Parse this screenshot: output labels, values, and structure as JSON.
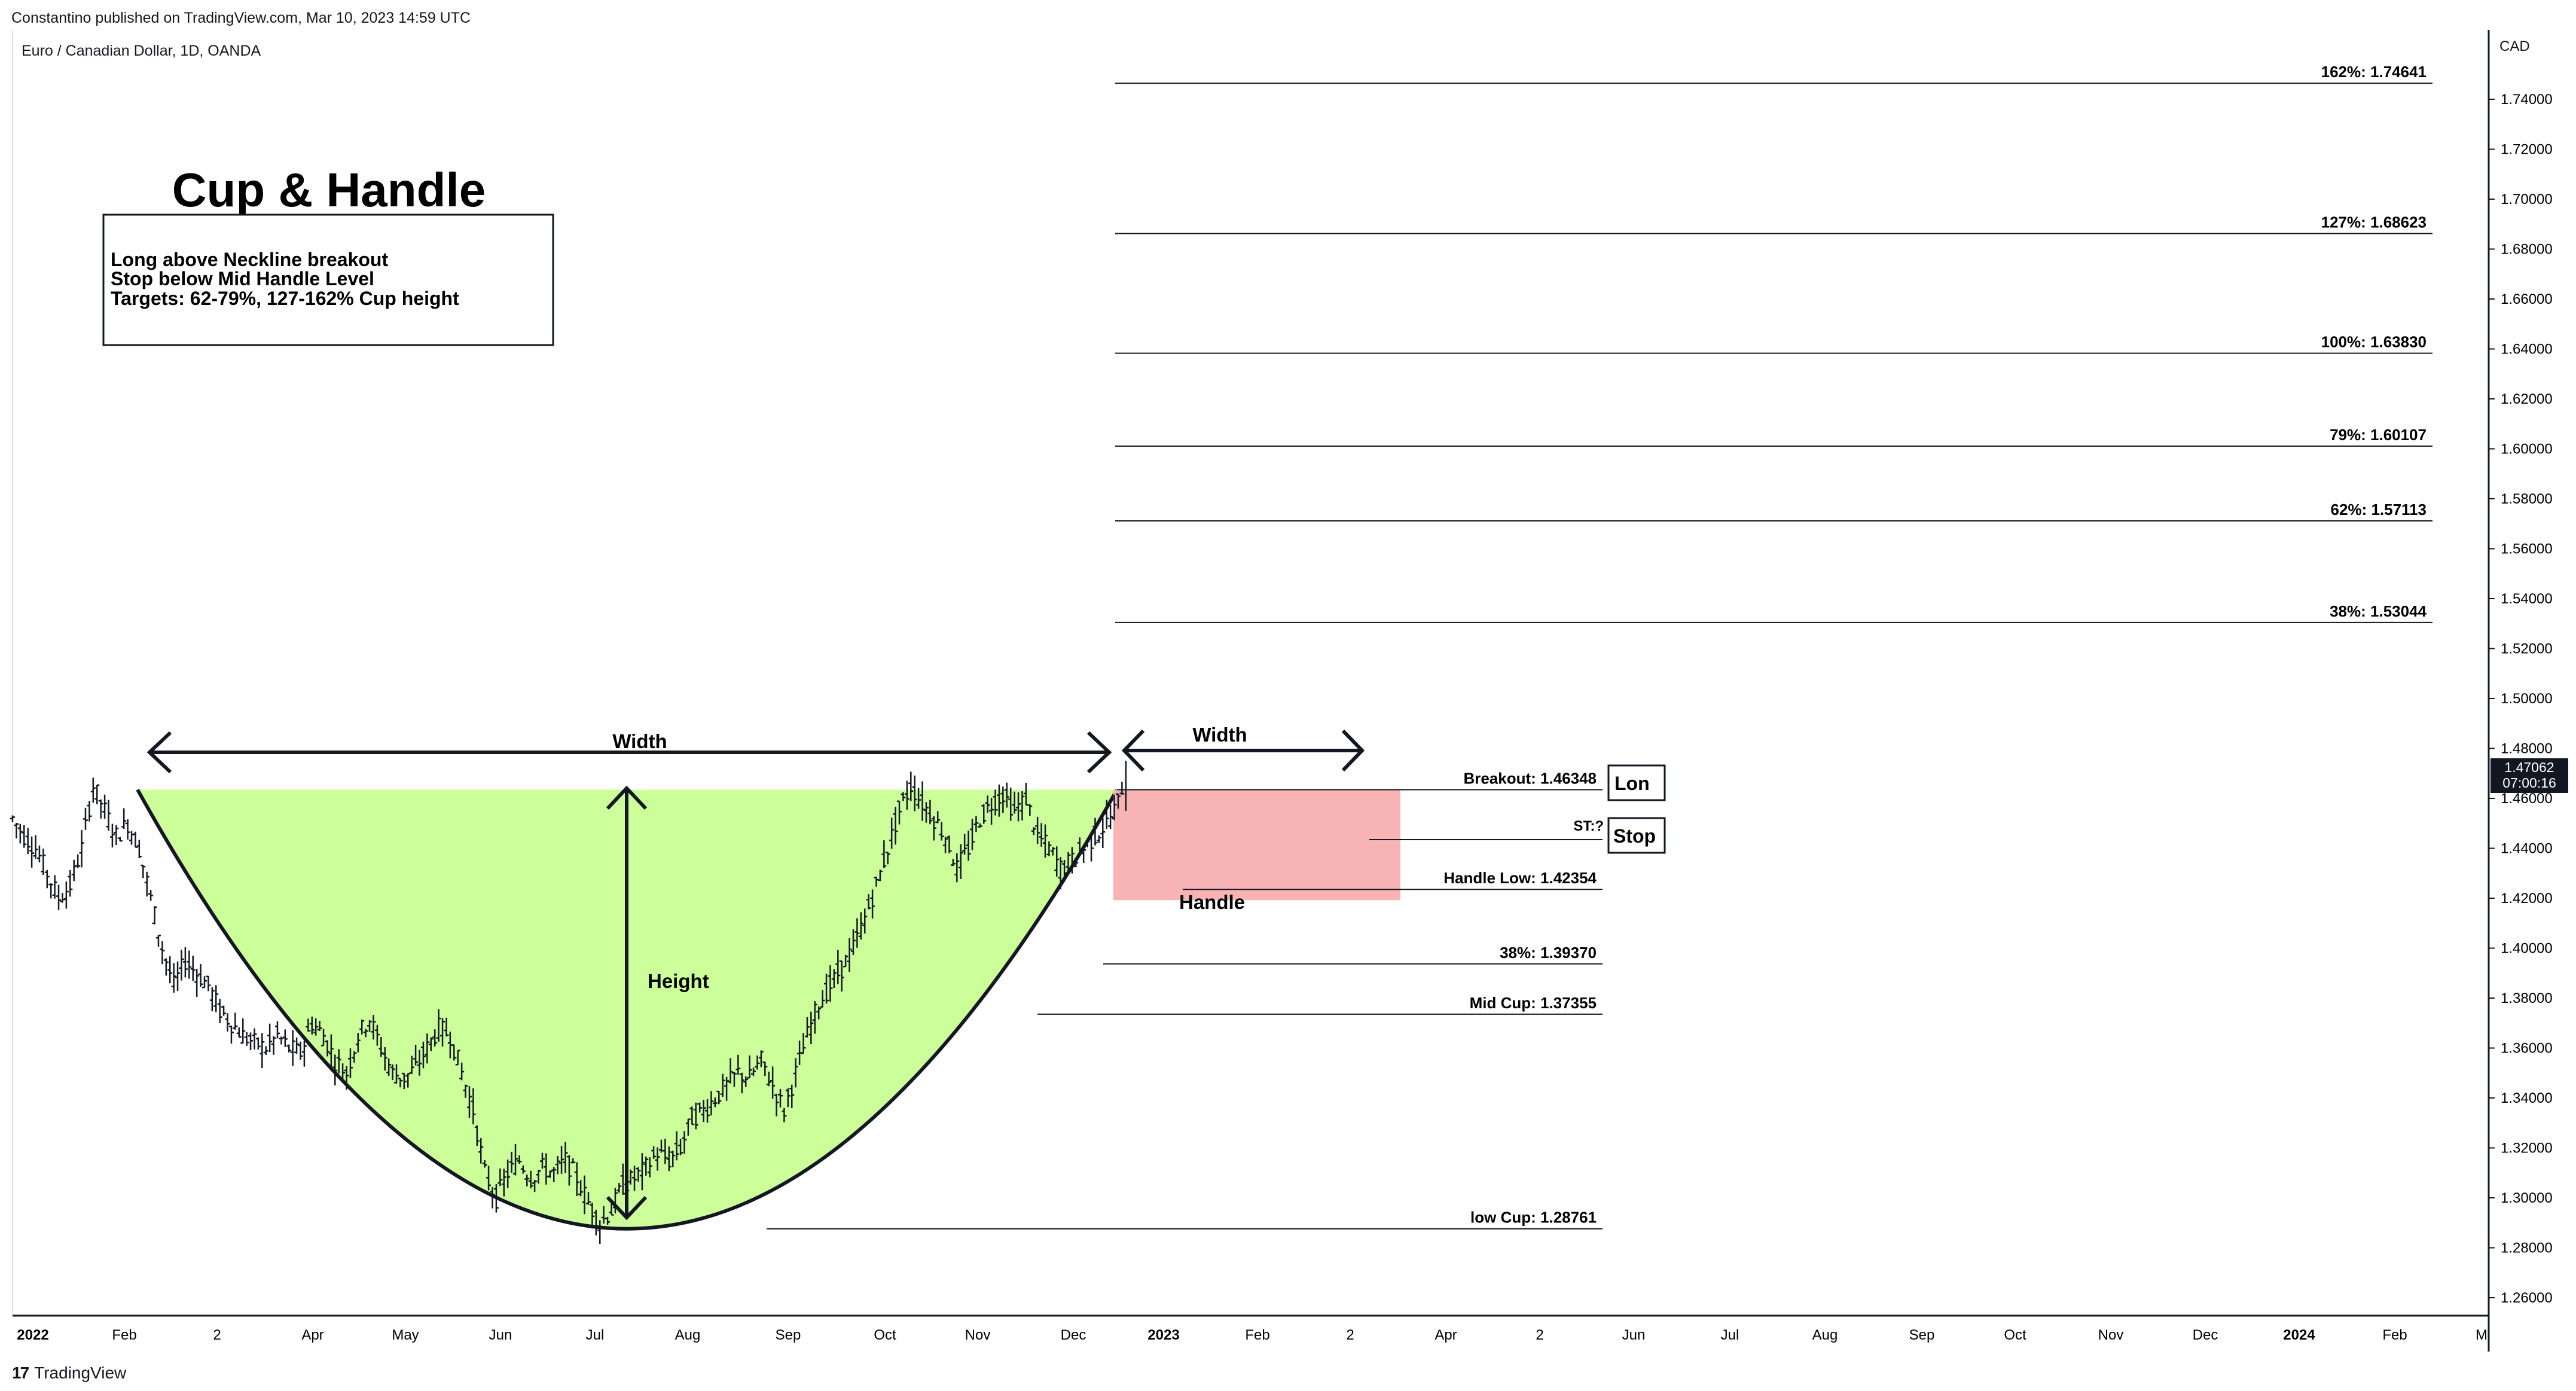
{
  "header": {
    "publisher": "Constantino published on TradingView.com, Mar 10, 2023 14:59 UTC",
    "symbol": "Euro / Canadian Dollar, 1D, OANDA"
  },
  "footer": {
    "brand_mark": "17",
    "brand": "TradingView"
  },
  "price_scale": {
    "currency": "CAD",
    "current_price": "1.47062",
    "countdown": "07:00:16"
  },
  "annotations": {
    "title": "Cup & Handle",
    "box_lines": [
      "Long above Neckline breakout",
      "Stop below Mid Handle Level",
      "Targets: 62-79%, 127-162% Cup height"
    ],
    "width_label": "Width",
    "width_label_handle": "Width",
    "height_label": "Height",
    "handle_label": "Handle",
    "long_label": "Lon",
    "stop_label": "Stop",
    "stop_target_label": "ST:?"
  },
  "chart_data": {
    "type": "ohlc",
    "symbol": "EUR/CAD",
    "interval": "1D",
    "ylim": [
      1.245,
      1.775
    ],
    "y_ticks": [
      "1.74000",
      "1.72000",
      "1.70000",
      "1.68000",
      "1.66000",
      "1.64000",
      "1.62000",
      "1.60000",
      "1.58000",
      "1.56000",
      "1.54000",
      "1.52000",
      "1.50000",
      "1.48000",
      "1.46000",
      "1.44000",
      "1.42000",
      "1.40000",
      "1.38000",
      "1.36000",
      "1.34000",
      "1.32000",
      "1.30000",
      "1.28000",
      "1.26000"
    ],
    "x_ticks": [
      "2022",
      "Feb",
      "2",
      "Apr",
      "May",
      "Jun",
      "Jul",
      "Aug",
      "Sep",
      "Oct",
      "Nov",
      "Dec",
      "2023",
      "Feb",
      "2",
      "Apr",
      "2",
      "Jun",
      "Jul",
      "Aug",
      "Sep",
      "Oct",
      "Nov",
      "Dec",
      "2024",
      "Feb",
      "M"
    ],
    "bold_x_ticks": [
      "2022",
      "2023",
      "2024"
    ],
    "price_path": [
      [
        0,
        1.452
      ],
      [
        3,
        1.445
      ],
      [
        6,
        1.44
      ],
      [
        9,
        1.43
      ],
      [
        12,
        1.42
      ],
      [
        15,
        1.425
      ],
      [
        18,
        1.44
      ],
      [
        21,
        1.465
      ],
      [
        24,
        1.455
      ],
      [
        27,
        1.445
      ],
      [
        30,
        1.45
      ],
      [
        33,
        1.44
      ],
      [
        36,
        1.42
      ],
      [
        39,
        1.4
      ],
      [
        42,
        1.385
      ],
      [
        45,
        1.395
      ],
      [
        48,
        1.39
      ],
      [
        51,
        1.385
      ],
      [
        54,
        1.375
      ],
      [
        57,
        1.37
      ],
      [
        60,
        1.365
      ],
      [
        63,
        1.362
      ],
      [
        66,
        1.36
      ],
      [
        69,
        1.365
      ],
      [
        72,
        1.36
      ],
      [
        75,
        1.358
      ],
      [
        78,
        1.37
      ],
      [
        81,
        1.365
      ],
      [
        84,
        1.355
      ],
      [
        87,
        1.35
      ],
      [
        90,
        1.365
      ],
      [
        93,
        1.372
      ],
      [
        96,
        1.36
      ],
      [
        99,
        1.35
      ],
      [
        102,
        1.348
      ],
      [
        105,
        1.352
      ],
      [
        108,
        1.36
      ],
      [
        111,
        1.368
      ],
      [
        114,
        1.365
      ],
      [
        117,
        1.35
      ],
      [
        120,
        1.335
      ],
      [
        123,
        1.31
      ],
      [
        126,
        1.3
      ],
      [
        129,
        1.31
      ],
      [
        132,
        1.315
      ],
      [
        135,
        1.308
      ],
      [
        138,
        1.312
      ],
      [
        141,
        1.31
      ],
      [
        144,
        1.315
      ],
      [
        147,
        1.308
      ],
      [
        150,
        1.298
      ],
      [
        153,
        1.29
      ],
      [
        156,
        1.295
      ],
      [
        159,
        1.305
      ],
      [
        162,
        1.308
      ],
      [
        165,
        1.312
      ],
      [
        168,
        1.318
      ],
      [
        171,
        1.315
      ],
      [
        174,
        1.32
      ],
      [
        177,
        1.332
      ],
      [
        180,
        1.335
      ],
      [
        183,
        1.34
      ],
      [
        186,
        1.345
      ],
      [
        189,
        1.35
      ],
      [
        192,
        1.348
      ],
      [
        195,
        1.355
      ],
      [
        198,
        1.345
      ],
      [
        201,
        1.335
      ],
      [
        204,
        1.35
      ],
      [
        207,
        1.365
      ],
      [
        210,
        1.378
      ],
      [
        213,
        1.385
      ],
      [
        216,
        1.392
      ],
      [
        219,
        1.4
      ],
      [
        222,
        1.412
      ],
      [
        225,
        1.425
      ],
      [
        228,
        1.44
      ],
      [
        231,
        1.455
      ],
      [
        234,
        1.465
      ],
      [
        237,
        1.458
      ],
      [
        240,
        1.452
      ],
      [
        243,
        1.445
      ],
      [
        246,
        1.432
      ],
      [
        249,
        1.44
      ],
      [
        252,
        1.452
      ],
      [
        255,
        1.458
      ],
      [
        258,
        1.462
      ],
      [
        261,
        1.455
      ],
      [
        264,
        1.46
      ],
      [
        267,
        1.445
      ],
      [
        270,
        1.44
      ],
      [
        273,
        1.432
      ],
      [
        276,
        1.435
      ],
      [
        279,
        1.44
      ],
      [
        282,
        1.445
      ],
      [
        285,
        1.45
      ],
      [
        288,
        1.458
      ],
      [
        290,
        1.471
      ]
    ],
    "price_path_x_unit": "trading days since Jan 2022",
    "levels": [
      {
        "label": "162%: 1.74641",
        "value": 1.74641
      },
      {
        "label": "127%: 1.68623",
        "value": 1.68623
      },
      {
        "label": "100%: 1.63830",
        "value": 1.6383
      },
      {
        "label": "79%: 1.60107",
        "value": 1.60107
      },
      {
        "label": "62%: 1.57113",
        "value": 1.57113
      },
      {
        "label": "38%: 1.53044",
        "value": 1.53044
      },
      {
        "label": "Breakout: 1.46348",
        "value": 1.46348
      },
      {
        "label": "Handle Low: 1.42354",
        "value": 1.42354
      },
      {
        "label": "38%: 1.39370",
        "value": 1.3937
      },
      {
        "label": "Mid Cup: 1.37355",
        "value": 1.37355
      },
      {
        "label": "low Cup: 1.28761",
        "value": 1.28761
      }
    ],
    "colors": {
      "cup_fill": "#ccff99",
      "handle_fill": "#f8b4b4",
      "bars": "#131722",
      "levels": "#131722"
    }
  }
}
